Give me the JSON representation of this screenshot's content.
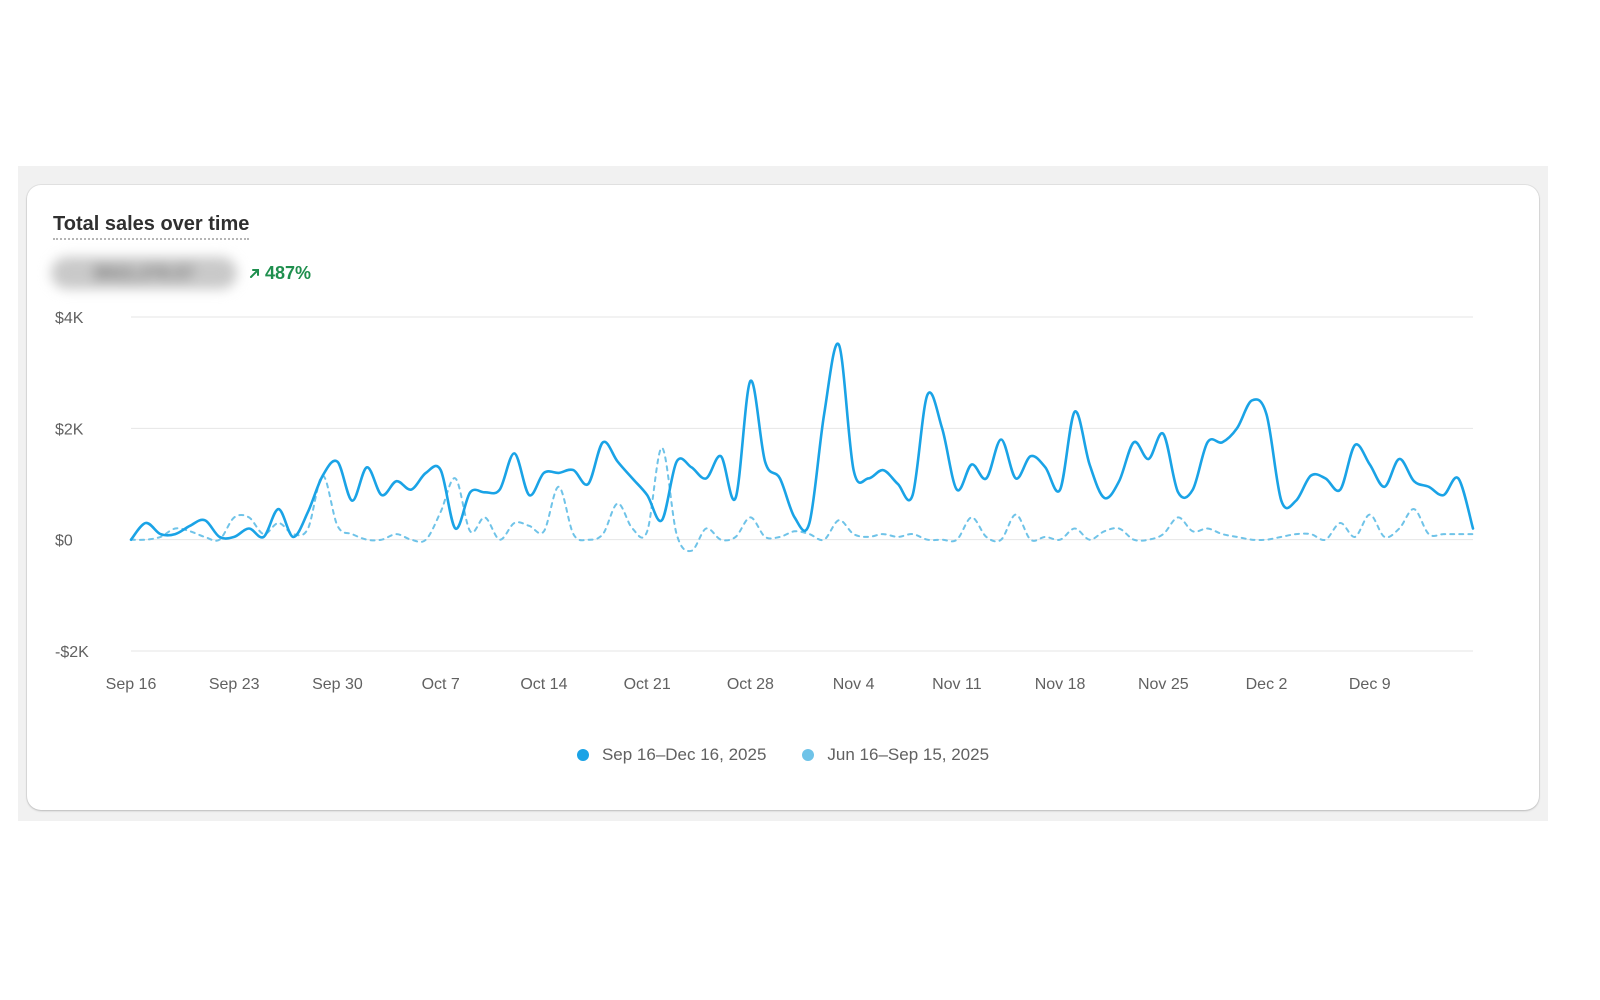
{
  "card": {
    "title": "Total sales over time",
    "total_value": "$922,378.57",
    "change_percent": "487%",
    "change_direction": "up",
    "change_color": "#1f8f4e"
  },
  "chart_data": {
    "type": "line",
    "y_tick_labels": [
      "$4K",
      "$2K",
      "$0",
      "-$2K"
    ],
    "y_ticks": [
      4000,
      2000,
      0,
      -2000
    ],
    "ylim": [
      -2000,
      4000
    ],
    "x_tick_labels": [
      "Sep 16",
      "Sep 23",
      "Sep 30",
      "Oct 7",
      "Oct 14",
      "Oct 21",
      "Oct 28",
      "Nov 4",
      "Nov 11",
      "Nov 18",
      "Nov 25",
      "Dec 2",
      "Dec 9"
    ],
    "x_tick_days": [
      0,
      7,
      14,
      21,
      28,
      35,
      42,
      49,
      56,
      63,
      70,
      77,
      84
    ],
    "x_range_days": [
      0,
      91
    ],
    "grid": "horizontal",
    "legend_position": "bottom",
    "series": [
      {
        "name": "Sep 16–Dec 16, 2025",
        "color": "#1aa3e6",
        "style": "solid",
        "values": [
          0,
          300,
          100,
          100,
          250,
          350,
          50,
          50,
          200,
          50,
          550,
          50,
          500,
          1150,
          1400,
          700,
          1300,
          800,
          1050,
          900,
          1200,
          1250,
          200,
          850,
          850,
          900,
          1550,
          800,
          1200,
          1200,
          1250,
          1000,
          1750,
          1400,
          1100,
          800,
          350,
          1400,
          1300,
          1100,
          1500,
          750,
          2850,
          1400,
          1100,
          400,
          300,
          2250,
          3500,
          1250,
          1100,
          1250,
          1000,
          800,
          2600,
          2000,
          900,
          1350,
          1100,
          1800,
          1100,
          1500,
          1300,
          900,
          2300,
          1350,
          750,
          1050,
          1750,
          1450,
          1900,
          850,
          900,
          1750,
          1750,
          2000,
          2500,
          2250,
          700,
          700,
          1150,
          1100,
          900,
          1700,
          1350,
          950,
          1450,
          1050,
          950,
          800,
          1100,
          200
        ]
      },
      {
        "name": "Jun 16–Sep 15, 2025",
        "color": "#6fc3e8",
        "style": "dashed",
        "values": [
          0,
          0,
          50,
          200,
          150,
          50,
          0,
          400,
          400,
          100,
          300,
          100,
          200,
          1150,
          250,
          100,
          0,
          0,
          100,
          0,
          0,
          500,
          1100,
          150,
          400,
          0,
          300,
          250,
          150,
          950,
          100,
          0,
          100,
          650,
          200,
          150,
          1650,
          100,
          -200,
          200,
          0,
          50,
          400,
          50,
          50,
          150,
          100,
          0,
          350,
          100,
          50,
          100,
          50,
          100,
          0,
          0,
          0,
          400,
          50,
          0,
          450,
          0,
          50,
          0,
          200,
          0,
          150,
          200,
          0,
          0,
          100,
          400,
          150,
          200,
          100,
          50,
          0,
          0,
          50,
          100,
          100,
          0,
          300,
          50,
          450,
          50,
          200,
          550,
          100,
          100,
          100,
          100
        ]
      }
    ]
  },
  "legend": [
    {
      "label": "Sep 16–Dec 16, 2025",
      "color": "#1aa3e6"
    },
    {
      "label": "Jun 16–Sep 15, 2025",
      "color": "#6fc3e8"
    }
  ]
}
